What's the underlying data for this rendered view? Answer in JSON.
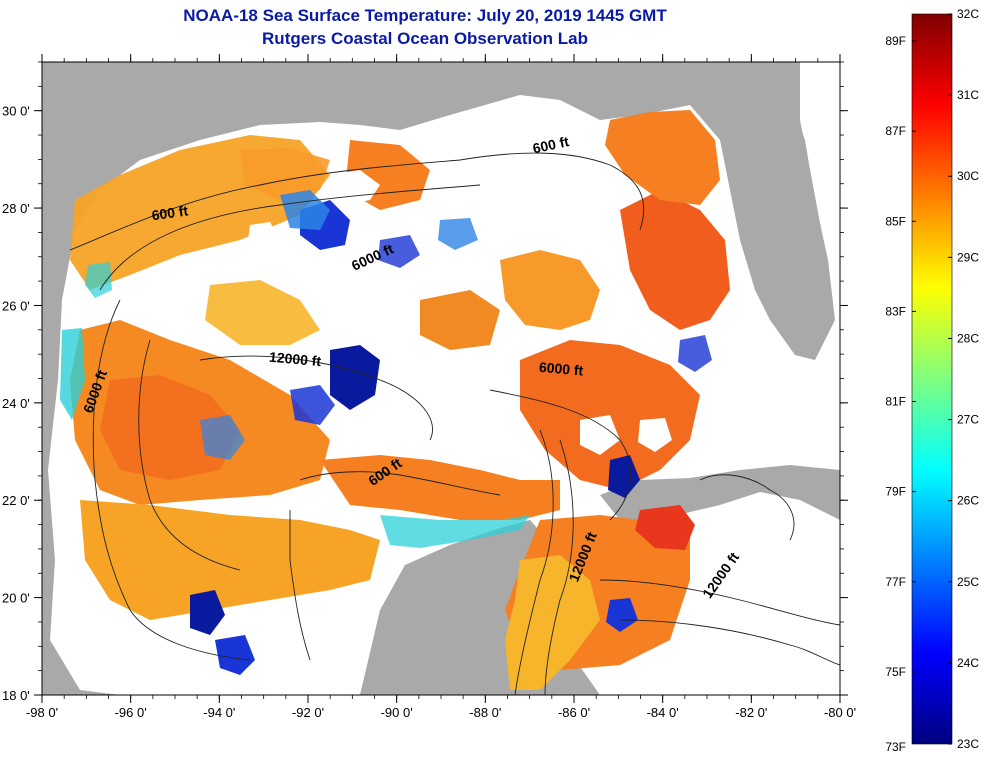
{
  "title": {
    "line1": "NOAA-18 Sea Surface Temperature:  July 20, 2019 1445 GMT",
    "line2": "Rutgers Coastal Ocean Observation Lab"
  },
  "map": {
    "x_ticks": [
      {
        "value": -98,
        "label": "-98 0'"
      },
      {
        "value": -96,
        "label": "-96 0'"
      },
      {
        "value": -94,
        "label": "-94 0'"
      },
      {
        "value": -92,
        "label": "-92 0'"
      },
      {
        "value": -90,
        "label": "-90 0'"
      },
      {
        "value": -88,
        "label": "-88 0'"
      },
      {
        "value": -86,
        "label": "-86 0'"
      },
      {
        "value": -84,
        "label": "-84 0'"
      },
      {
        "value": -82,
        "label": "-82 0'"
      },
      {
        "value": -80,
        "label": "-80 0'"
      }
    ],
    "y_ticks": [
      {
        "value": 30,
        "label": "30 0'"
      },
      {
        "value": 28,
        "label": "28 0'"
      },
      {
        "value": 26,
        "label": "26 0'"
      },
      {
        "value": 24,
        "label": "24 0'"
      },
      {
        "value": 22,
        "label": "22 0'"
      },
      {
        "value": 20,
        "label": "20 0'"
      },
      {
        "value": 18,
        "label": "18 0'"
      }
    ],
    "lon_range": [
      -98,
      -80
    ],
    "lat_range": [
      18,
      31
    ],
    "contour_labels": [
      {
        "text": "600 ft",
        "lon": -95.1,
        "lat": 27.8,
        "rot": -8
      },
      {
        "text": "600 ft",
        "lon": -86.5,
        "lat": 29.2,
        "rot": -12
      },
      {
        "text": "6000 ft",
        "lon": -90.5,
        "lat": 26.9,
        "rot": -25
      },
      {
        "text": "12000 ft",
        "lon": -92.3,
        "lat": 24.8,
        "rot": 5
      },
      {
        "text": "6000 ft",
        "lon": -96.7,
        "lat": 24.2,
        "rot": -70
      },
      {
        "text": "6000 ft",
        "lon": -86.3,
        "lat": 24.6,
        "rot": 5
      },
      {
        "text": "600 ft",
        "lon": -90.2,
        "lat": 22.5,
        "rot": -35
      },
      {
        "text": "12000 ft",
        "lon": -85.7,
        "lat": 20.8,
        "rot": -68
      },
      {
        "text": "12000 ft",
        "lon": -82.6,
        "lat": 20.4,
        "rot": -55
      }
    ]
  },
  "colorbar": {
    "f_labels": [
      "89F",
      "87F",
      "85F",
      "83F",
      "81F",
      "79F",
      "77F",
      "75F",
      "73F"
    ],
    "c_labels": [
      "32C",
      "31C",
      "30C",
      "29C",
      "28C",
      "27C",
      "26C",
      "25C",
      "24C",
      "23C"
    ],
    "c_range": [
      23,
      32
    ],
    "colors": [
      "#00007f",
      "#0000ff",
      "#007fff",
      "#00ffff",
      "#7fff7f",
      "#ffff00",
      "#ff7f00",
      "#ff0000",
      "#7f0000"
    ]
  }
}
